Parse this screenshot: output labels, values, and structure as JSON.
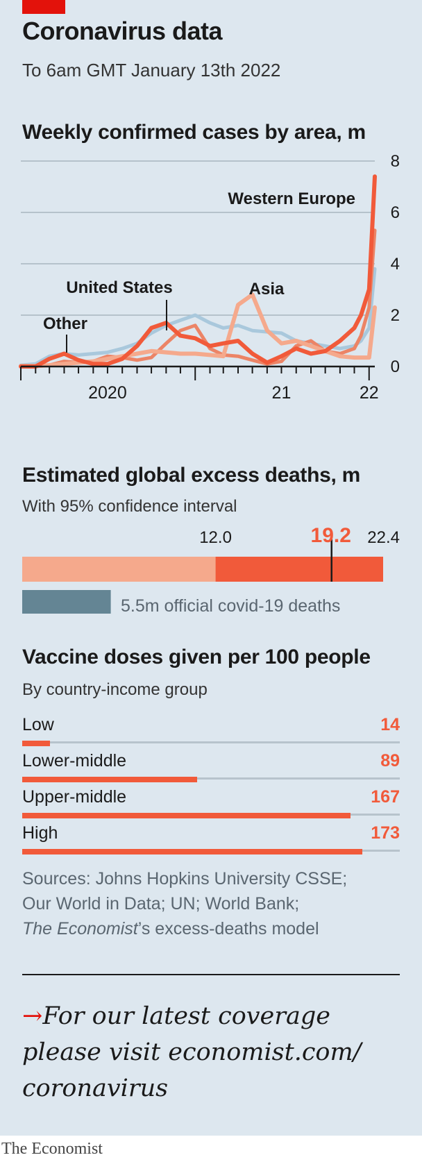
{
  "title": "Coronavirus data",
  "date": "To 6am GMT January 13th 2022",
  "cases": {
    "title": "Weekly confirmed cases by area, m"
  },
  "deaths": {
    "title": "Estimated global excess deaths, m",
    "subtitle": "With 95% confidence interval",
    "official_label": "5.5m official covid-19 deaths"
  },
  "vaccines": {
    "title": "Vaccine doses given per 100 people",
    "subtitle": "By country-income group"
  },
  "sources": {
    "line1": "Sources: Johns Hopkins University CSSE;",
    "line2": "Our World in Data; UN; World Bank;",
    "line3_italic": "The Economist",
    "line3_rest": "’s excess-deaths model"
  },
  "cta": {
    "arrow": "→",
    "line1": "For our latest coverage",
    "line2": "please visit economist.com/",
    "line3": "coronavirus"
  },
  "footer": "The Economist",
  "colors": {
    "accent_red": "#e3120b",
    "western_europe": "#f15a3a",
    "asia": "#f5a98c",
    "united_states": "#ec8466",
    "other": "#a9c8dc",
    "official_deaths": "#648594",
    "background": "#dde7ef"
  },
  "chart_data": [
    {
      "type": "line",
      "title": "Weekly confirmed cases by area, m",
      "ylim": [
        0,
        8
      ],
      "yticks": [
        0,
        2,
        4,
        6,
        8
      ],
      "xlim": [
        "2020-01-01",
        "2022-01-13"
      ],
      "xtick_labels": [
        {
          "label": "2020",
          "date": "2020-07-01"
        },
        {
          "label": "21",
          "date": "2021-07-01"
        },
        {
          "label": "22",
          "date": "2022-01-01"
        }
      ],
      "grid": true,
      "x": [
        "2020-01-01",
        "2020-02-01",
        "2020-03-01",
        "2020-04-01",
        "2020-05-01",
        "2020-06-01",
        "2020-07-01",
        "2020-08-01",
        "2020-09-01",
        "2020-10-01",
        "2020-11-01",
        "2020-12-01",
        "2021-01-01",
        "2021-02-01",
        "2021-03-01",
        "2021-04-01",
        "2021-05-01",
        "2021-06-01",
        "2021-07-01",
        "2021-08-01",
        "2021-09-01",
        "2021-10-01",
        "2021-11-01",
        "2021-12-01",
        "2021-12-15",
        "2022-01-01",
        "2022-01-13"
      ],
      "series": [
        {
          "name": "Other",
          "values": [
            0.05,
            0.1,
            0.4,
            0.5,
            0.45,
            0.5,
            0.55,
            0.7,
            0.9,
            1.3,
            1.6,
            1.8,
            2.0,
            1.7,
            1.5,
            1.6,
            1.4,
            1.35,
            1.3,
            1.0,
            0.9,
            0.8,
            0.7,
            0.8,
            1.0,
            1.5,
            3.8
          ]
        },
        {
          "name": "United States",
          "values": [
            0.0,
            0.0,
            0.05,
            0.2,
            0.15,
            0.2,
            0.4,
            0.35,
            0.25,
            0.35,
            0.9,
            1.4,
            1.6,
            0.7,
            0.45,
            0.4,
            0.25,
            0.1,
            0.2,
            0.8,
            1.0,
            0.6,
            0.5,
            0.7,
            1.2,
            2.3,
            5.3
          ]
        },
        {
          "name": "Asia",
          "values": [
            0.02,
            0.02,
            0.05,
            0.1,
            0.15,
            0.2,
            0.3,
            0.4,
            0.5,
            0.6,
            0.55,
            0.5,
            0.5,
            0.45,
            0.4,
            2.4,
            2.8,
            1.4,
            0.9,
            1.0,
            0.8,
            0.6,
            0.4,
            0.35,
            0.35,
            0.35,
            2.3
          ]
        },
        {
          "name": "Western Europe",
          "values": [
            0.0,
            0.0,
            0.3,
            0.5,
            0.25,
            0.1,
            0.1,
            0.3,
            0.8,
            1.5,
            1.7,
            1.2,
            1.1,
            0.8,
            0.9,
            1.0,
            0.5,
            0.15,
            0.4,
            0.7,
            0.5,
            0.6,
            1.0,
            1.5,
            2.0,
            3.0,
            7.4
          ]
        }
      ]
    },
    {
      "type": "bar",
      "title": "Estimated global excess deaths, m",
      "subtitle": "With 95% confidence interval",
      "ci_low": 12.0,
      "estimate": 19.2,
      "ci_high": 22.4,
      "official_deaths": 5.5,
      "low_label": "12.0",
      "estimate_label": "19.2",
      "high_label": "22.4"
    },
    {
      "type": "bar",
      "title": "Vaccine doses given per 100 people",
      "subtitle": "By country-income group",
      "categories": [
        "Low",
        "Lower-middle",
        "Upper-middle",
        "High"
      ],
      "values": [
        14,
        89,
        167,
        173
      ],
      "value_labels": [
        "14",
        "89",
        "167",
        "173"
      ],
      "xlim": [
        0,
        192
      ]
    }
  ]
}
